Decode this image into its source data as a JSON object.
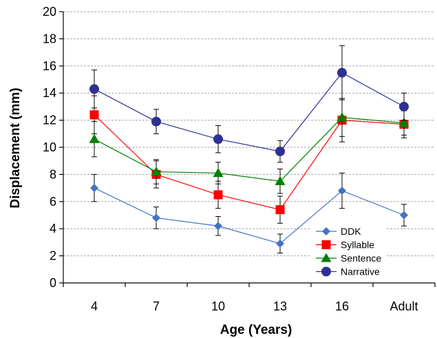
{
  "chart_data": {
    "type": "line",
    "categories": [
      "4",
      "7",
      "10",
      "13",
      "16",
      "Adult"
    ],
    "xlabel": "Age (Years)",
    "ylabel": "Displacement (mm)",
    "ylim": [
      0,
      20
    ],
    "yticks": [
      0,
      2,
      4,
      6,
      8,
      10,
      12,
      14,
      16,
      18,
      20
    ],
    "grid": "horizontal dashed",
    "legend_position": "bottom-right",
    "series": [
      {
        "name": "DDK",
        "marker": "diamond",
        "color": "#4472C4",
        "values": [
          7.0,
          4.8,
          4.2,
          2.9,
          6.8,
          5.0
        ],
        "error": [
          1.0,
          0.8,
          0.7,
          0.7,
          1.3,
          0.8
        ]
      },
      {
        "name": "Syllable",
        "marker": "square",
        "color": "#FF0000",
        "values": [
          12.4,
          8.0,
          6.5,
          5.4,
          12.0,
          11.7
        ],
        "error": [
          1.4,
          1.0,
          1.0,
          1.0,
          1.6,
          1.0
        ]
      },
      {
        "name": "Sentence",
        "marker": "triangle",
        "color": "#008000",
        "values": [
          10.6,
          8.2,
          8.1,
          7.5,
          12.2,
          11.8
        ],
        "error": [
          1.3,
          0.9,
          0.8,
          0.9,
          1.4,
          0.9
        ]
      },
      {
        "name": "Narrative",
        "marker": "circle",
        "color": "#2E3192",
        "values": [
          14.3,
          11.9,
          10.6,
          9.7,
          15.5,
          13.0
        ],
        "error": [
          1.4,
          0.9,
          1.0,
          0.8,
          2.0,
          1.0
        ]
      }
    ]
  }
}
